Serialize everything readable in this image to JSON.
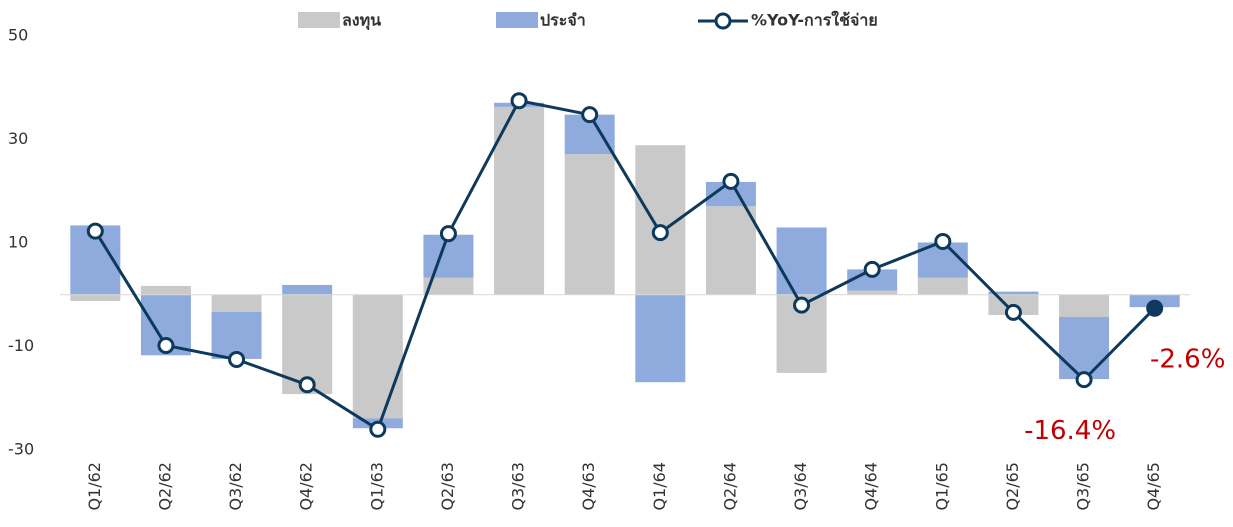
{
  "chart_data": {
    "type": "bar_line",
    "categories": [
      "Q1/62",
      "Q2/62",
      "Q3/62",
      "Q4/62",
      "Q1/63",
      "Q2/63",
      "Q3/63",
      "Q4/63",
      "Q1/64",
      "Q2/64",
      "Q3/64",
      "Q4/64",
      "Q1/65",
      "Q2/65",
      "Q3/65",
      "Q4/65"
    ],
    "series": [
      {
        "name": "ลงทุน",
        "color": "#c9c9c9",
        "kind": "bar",
        "values": [
          -1.2,
          1.7,
          -3.3,
          -19.2,
          -23.9,
          3.3,
          36.3,
          27.2,
          28.9,
          17.1,
          -15.1,
          0.8,
          3.3,
          -3.9,
          -4.3,
          0
        ]
      },
      {
        "name": "ประจำ",
        "color": "#8faadc",
        "kind": "bar",
        "values": [
          13.4,
          -11.7,
          -9.1,
          1.9,
          -1.9,
          8.3,
          0.8,
          7.6,
          -16.9,
          4.7,
          13.0,
          4.1,
          6.8,
          0.6,
          -12.0,
          -2.4
        ]
      },
      {
        "name": "%YoY-การใช้จ่าย",
        "color": "#0d3a5c",
        "kind": "line",
        "values": [
          12.3,
          -9.8,
          -12.5,
          -17.4,
          -26.0,
          11.8,
          37.5,
          34.8,
          12.0,
          21.9,
          -2.0,
          4.9,
          10.3,
          -3.4,
          -16.4,
          -2.6
        ],
        "value_labels": [
          null,
          null,
          null,
          null,
          null,
          null,
          null,
          null,
          null,
          null,
          null,
          null,
          null,
          null,
          "-16.4%",
          "-2.6%"
        ]
      }
    ],
    "ylim": [
      -30,
      50
    ],
    "yticks": [
      -30,
      -10,
      10,
      30,
      50
    ],
    "grid": false,
    "legend": "top"
  }
}
